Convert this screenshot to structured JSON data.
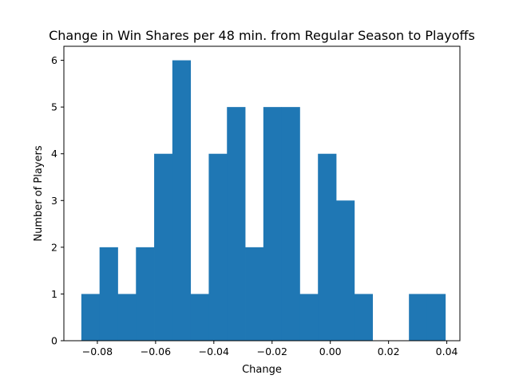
{
  "chart_data": {
    "type": "bar",
    "title": "Change in Win Shares per 48 min. from Regular Season to Playoffs",
    "xlabel": "Change",
    "ylabel": "Number of Players",
    "xlim": [
      -0.0915,
      0.0445
    ],
    "ylim": [
      0,
      6.3
    ],
    "xticks": [
      "−0.08",
      "−0.06",
      "−0.04",
      "−0.02",
      "0.00",
      "0.02",
      "0.04"
    ],
    "xtick_values": [
      -0.08,
      -0.06,
      -0.04,
      -0.02,
      0.0,
      0.02,
      0.04
    ],
    "yticks": [
      "0",
      "1",
      "2",
      "3",
      "4",
      "5",
      "6"
    ],
    "ytick_values": [
      0,
      1,
      2,
      3,
      4,
      5,
      6
    ],
    "bin_start": -0.0855,
    "bin_width": 0.00625,
    "values": [
      1,
      2,
      1,
      2,
      4,
      6,
      1,
      4,
      5,
      2,
      5,
      5,
      1,
      4,
      3,
      1,
      0,
      0,
      1,
      1
    ],
    "bar_color": "#1f77b4",
    "grid": false,
    "legend": "none"
  }
}
